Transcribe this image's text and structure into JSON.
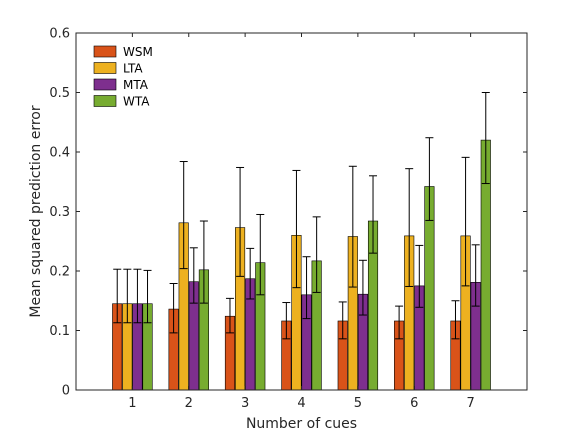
{
  "chart_data": {
    "type": "bar",
    "xlabel": "Number of cues",
    "ylabel": "Mean squared prediction error",
    "categories": [
      "1",
      "2",
      "3",
      "4",
      "5",
      "6",
      "7"
    ],
    "ylim": [
      0,
      0.6
    ],
    "yticks": [
      "0",
      "0.1",
      "0.2",
      "0.3",
      "0.4",
      "0.5",
      "0.6"
    ],
    "grid": false,
    "legend_position": "top-left",
    "series": [
      {
        "name": "WSM",
        "color": "#D95319",
        "values": [
          0.145,
          0.136,
          0.124,
          0.116,
          0.116,
          0.116,
          0.116
        ],
        "err_low": [
          0.113,
          0.096,
          0.096,
          0.086,
          0.086,
          0.086,
          0.086
        ],
        "err_high": [
          0.203,
          0.179,
          0.154,
          0.147,
          0.148,
          0.141,
          0.15
        ]
      },
      {
        "name": "LTA",
        "color": "#EDB120",
        "values": [
          0.145,
          0.281,
          0.273,
          0.26,
          0.258,
          0.259,
          0.259
        ],
        "err_low": [
          0.113,
          0.204,
          0.191,
          0.172,
          0.173,
          0.174,
          0.175
        ],
        "err_high": [
          0.203,
          0.384,
          0.374,
          0.369,
          0.376,
          0.372,
          0.391
        ]
      },
      {
        "name": "MTA",
        "color": "#7E2F8E",
        "values": [
          0.145,
          0.182,
          0.187,
          0.16,
          0.161,
          0.175,
          0.181
        ],
        "err_low": [
          0.113,
          0.146,
          0.153,
          0.12,
          0.126,
          0.139,
          0.141
        ],
        "err_high": [
          0.203,
          0.239,
          0.238,
          0.224,
          0.218,
          0.243,
          0.244
        ]
      },
      {
        "name": "WTA",
        "color": "#77AC30",
        "values": [
          0.145,
          0.202,
          0.214,
          0.217,
          0.284,
          0.342,
          0.42
        ],
        "err_low": [
          0.113,
          0.146,
          0.16,
          0.164,
          0.23,
          0.285,
          0.347
        ],
        "err_high": [
          0.201,
          0.284,
          0.295,
          0.291,
          0.36,
          0.424,
          0.5
        ]
      }
    ]
  }
}
